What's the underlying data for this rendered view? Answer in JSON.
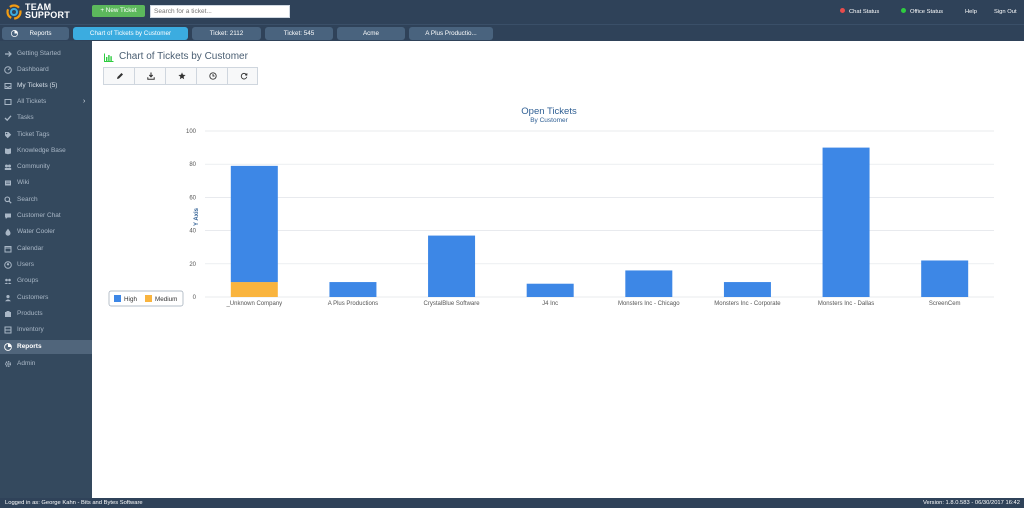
{
  "topbar": {
    "logo_line1": "TEAM",
    "logo_line2": "SUPPORT",
    "new_ticket_label": "+ New Ticket",
    "search_placeholder": "Search for a ticket...",
    "chat_status": "Chat Status",
    "chat_status_color": "#e74c4c",
    "office_status": "Office Status",
    "office_status_color": "#2ecc40",
    "help": "Help",
    "sign_out": "Sign Out"
  },
  "tabs": [
    {
      "label": "Reports",
      "icon": "pie-chart-icon",
      "active": false
    },
    {
      "label": "Chart of Tickets by Customer",
      "active": true
    },
    {
      "label": "Ticket: 2112",
      "active": false
    },
    {
      "label": "Ticket: 545",
      "active": false
    },
    {
      "label": "Acme",
      "active": false
    },
    {
      "label": "A Plus Productio...",
      "active": false
    }
  ],
  "sidebar": {
    "items": [
      {
        "label": "Getting Started",
        "icon": "arrow-right-icon"
      },
      {
        "label": "Dashboard",
        "icon": "gauge-icon"
      },
      {
        "label": "My Tickets (5)",
        "icon": "inbox-icon"
      },
      {
        "label": "All Tickets",
        "icon": "ticket-icon"
      },
      {
        "label": "Tasks",
        "icon": "check-icon"
      },
      {
        "label": "Ticket Tags",
        "icon": "tag-icon"
      },
      {
        "label": "Knowledge Base",
        "icon": "book-icon"
      },
      {
        "label": "Community",
        "icon": "community-icon"
      },
      {
        "label": "Wiki",
        "icon": "wiki-icon"
      },
      {
        "label": "Search",
        "icon": "search-icon"
      },
      {
        "label": "Customer Chat",
        "icon": "chat-icon"
      },
      {
        "label": "Water Cooler",
        "icon": "water-cooler-icon"
      },
      {
        "label": "Calendar",
        "icon": "calendar-icon"
      },
      {
        "label": "Users",
        "icon": "user-icon"
      },
      {
        "label": "Groups",
        "icon": "group-icon"
      },
      {
        "label": "Customers",
        "icon": "customers-icon"
      },
      {
        "label": "Products",
        "icon": "products-icon"
      },
      {
        "label": "Inventory",
        "icon": "inventory-icon"
      },
      {
        "label": "Reports",
        "icon": "pie-chart-icon",
        "active": true
      },
      {
        "label": "Admin",
        "icon": "gear-icon"
      }
    ]
  },
  "main": {
    "title": "Chart of Tickets by Customer",
    "toolbar": [
      {
        "name": "edit",
        "icon": "pencil-icon"
      },
      {
        "name": "download",
        "icon": "download-icon"
      },
      {
        "name": "favorite",
        "icon": "star-icon"
      },
      {
        "name": "schedule",
        "icon": "clock-icon"
      },
      {
        "name": "refresh",
        "icon": "refresh-icon"
      }
    ]
  },
  "chart_data": {
    "type": "bar",
    "stacked": true,
    "title": "Open Tickets",
    "subtitle": "By Customer",
    "xlabel": "",
    "ylabel": "Y Axis",
    "ylim": [
      0,
      100
    ],
    "yticks": [
      0,
      20,
      40,
      60,
      80,
      100
    ],
    "grid": true,
    "legend_position": "left",
    "categories": [
      "_Unknown Company",
      "A Plus Productions",
      "CrystalBlue Software",
      "J4 Inc",
      "Monsters Inc - Chicago",
      "Monsters Inc - Corporate",
      "Monsters Inc - Dallas",
      "ScreenCem"
    ],
    "series": [
      {
        "name": "High",
        "color": "#3d87e6",
        "values": [
          70,
          9,
          37,
          8,
          16,
          9,
          90,
          22
        ]
      },
      {
        "name": "Medium",
        "color": "#f9b43e",
        "values": [
          9,
          0,
          0,
          0,
          0,
          0,
          0,
          0
        ]
      }
    ]
  },
  "footer": {
    "logged_in": "Logged in as: George Kahn - Bits and Bytes Software",
    "version": "Version: 1.8.0.583 - 06/30/2017 16:42"
  }
}
